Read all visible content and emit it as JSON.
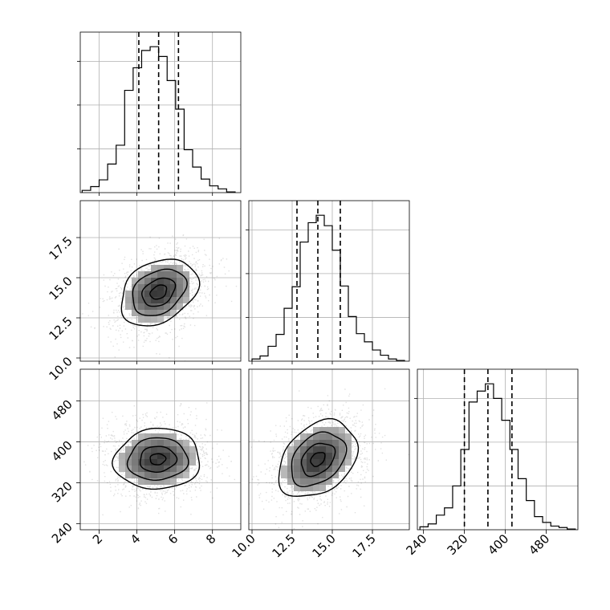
{
  "chart_data": {
    "type": "corner",
    "grid_on": true,
    "params": [
      {
        "range": [
          1.0,
          9.5
        ],
        "ticks": [
          2,
          4,
          6,
          8
        ],
        "tick_labels": [
          "2",
          "4",
          "6",
          "8"
        ],
        "quantiles": [
          4.1,
          5.15,
          6.2
        ],
        "hist_bins": [
          1.1,
          1.55,
          2.0,
          2.45,
          2.9,
          3.35,
          3.8,
          4.25,
          4.7,
          5.15,
          5.6,
          6.05,
          6.5,
          6.95,
          7.4,
          7.85,
          8.3,
          8.75,
          9.2
        ],
        "hist_counts": [
          3,
          8,
          17,
          38,
          63,
          136,
          166,
          189,
          194,
          181,
          149,
          111,
          57,
          34,
          18,
          9,
          5,
          1
        ]
      },
      {
        "range": [
          9.8,
          19.8
        ],
        "ticks": [
          10.0,
          12.5,
          15.0,
          17.5
        ],
        "tick_labels": [
          "10.0",
          "12.5",
          "15.0",
          "17.5"
        ],
        "quantiles": [
          12.8,
          14.1,
          15.5
        ],
        "hist_bins": [
          10.0,
          10.5,
          11.0,
          11.5,
          12.0,
          12.5,
          13.0,
          13.5,
          14.0,
          14.5,
          15.0,
          15.5,
          16.0,
          16.5,
          17.0,
          17.5,
          18.0,
          18.5,
          19.0,
          19.5
        ],
        "hist_counts": [
          3,
          7,
          20,
          36,
          71,
          100,
          160,
          186,
          196,
          182,
          149,
          101,
          60,
          37,
          26,
          15,
          8,
          3,
          1
        ]
      },
      {
        "range": [
          228,
          542
        ],
        "ticks": [
          240,
          320,
          400,
          480
        ],
        "tick_labels": [
          "240",
          "320",
          "400",
          "480"
        ],
        "quantiles": [
          320,
          366,
          413
        ],
        "hist_bins": [
          233,
          249,
          265,
          281,
          297,
          313,
          329,
          345,
          361,
          377,
          393,
          409,
          425,
          441,
          457,
          473,
          489,
          505,
          521,
          537
        ],
        "hist_counts": [
          4,
          8,
          20,
          30,
          60,
          110,
          175,
          190,
          200,
          180,
          150,
          110,
          70,
          40,
          18,
          10,
          5,
          3,
          1
        ]
      }
    ],
    "pairs": [
      {
        "x_param": 0,
        "y_param": 1,
        "center": [
          5.15,
          14.1
        ],
        "sd": [
          1.05,
          1.35
        ],
        "rotation_deg": 32,
        "contour_levels_sigma": [
          0.35,
          0.7,
          1.15,
          1.65
        ]
      },
      {
        "x_param": 0,
        "y_param": 2,
        "center": [
          5.1,
          366
        ],
        "sd": [
          1.05,
          45
        ],
        "rotation_deg": 4,
        "contour_levels_sigma": [
          0.3,
          0.7,
          1.15,
          1.65
        ]
      },
      {
        "x_param": 1,
        "y_param": 2,
        "center": [
          14.1,
          366
        ],
        "sd": [
          1.35,
          45
        ],
        "rotation_deg": 43,
        "contour_levels_sigma": [
          0.3,
          0.7,
          1.15,
          1.65
        ]
      }
    ]
  }
}
